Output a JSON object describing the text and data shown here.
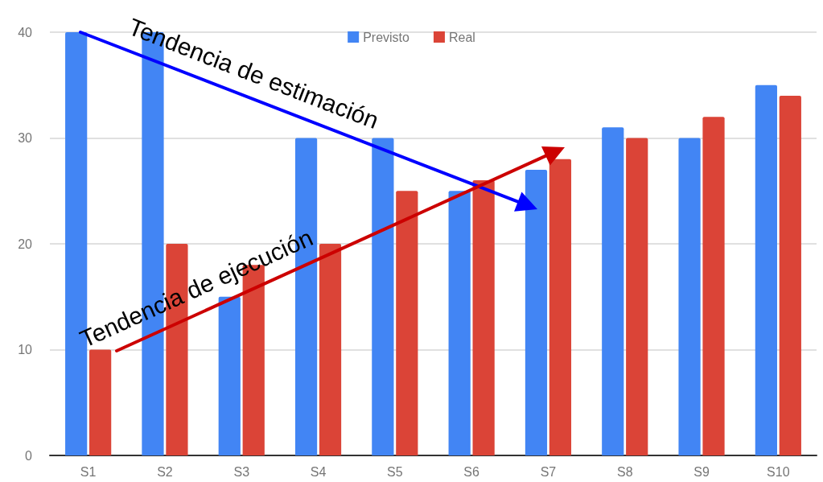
{
  "chart_data": {
    "type": "bar",
    "categories": [
      "S1",
      "S2",
      "S3",
      "S4",
      "S5",
      "S6",
      "S7",
      "S8",
      "S9",
      "S10"
    ],
    "series": [
      {
        "name": "Previsto",
        "color": "#4285f4",
        "values": [
          40,
          40,
          15,
          30,
          30,
          25,
          27,
          31,
          30,
          35
        ]
      },
      {
        "name": "Real",
        "color": "#db4437",
        "values": [
          10,
          20,
          18,
          20,
          25,
          26,
          28,
          30,
          32,
          34
        ]
      }
    ],
    "ylim": [
      0,
      40
    ],
    "yticks": [
      0,
      10,
      20,
      30,
      40
    ],
    "grid": "y",
    "legend": "top",
    "annotations": [
      "Tendencia de estimación",
      "Tendencia de ejecución"
    ]
  }
}
